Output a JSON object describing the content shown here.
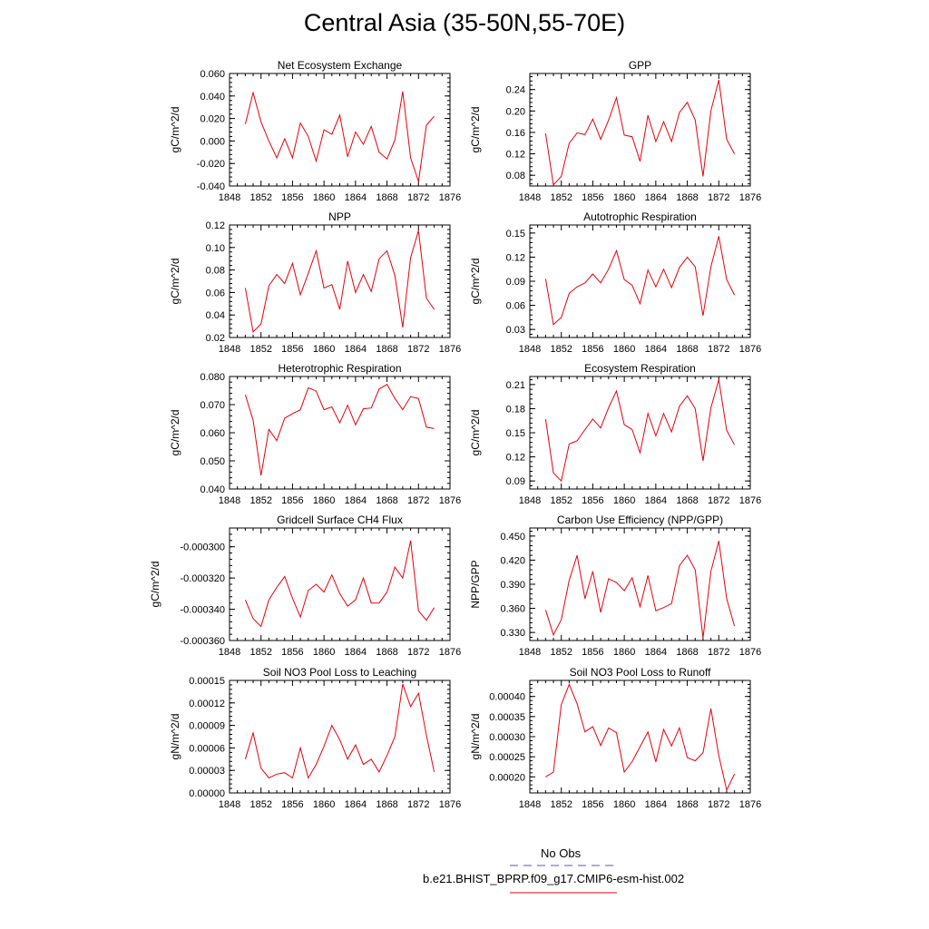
{
  "title": "Central Asia (35-50N,55-70E)",
  "colors": {
    "series": "#e8000b",
    "obs": "#5555cc",
    "frame": "#000000"
  },
  "chart_data": [
    {
      "type": "line",
      "title": "Net Ecosystem Exchange",
      "ylabel": "gC/m^2/d",
      "xlim": [
        1848,
        1876
      ],
      "xticks": [
        "1848",
        "1852",
        "1856",
        "1860",
        "1864",
        "1868",
        "1872",
        "1876"
      ],
      "ylim": [
        -0.04,
        0.06
      ],
      "yticks": [
        "-0.040",
        "-0.020",
        "0.000",
        "0.020",
        "0.040",
        "0.060"
      ],
      "x": [
        1850,
        1851,
        1852,
        1853,
        1854,
        1855,
        1856,
        1857,
        1858,
        1859,
        1860,
        1861,
        1862,
        1863,
        1864,
        1865,
        1866,
        1867,
        1868,
        1869,
        1870,
        1871,
        1872,
        1873,
        1874
      ],
      "series": [
        {
          "name": "b.e21.BHIST_BPRP.f09_g17.CMIP6-esm-hist.002",
          "values": [
            0.015,
            0.043,
            0.017,
            0.0,
            -0.015,
            0.002,
            -0.015,
            0.016,
            0.004,
            -0.018,
            0.01,
            0.006,
            0.023,
            -0.014,
            0.008,
            -0.003,
            0.013,
            -0.01,
            -0.016,
            0.001,
            0.044,
            -0.015,
            -0.036,
            0.014,
            0.022
          ]
        }
      ]
    },
    {
      "type": "line",
      "title": "GPP",
      "ylabel": "gC/m^2/d",
      "xlim": [
        1848,
        1876
      ],
      "xticks": [
        "1848",
        "1852",
        "1856",
        "1860",
        "1864",
        "1868",
        "1872",
        "1876"
      ],
      "ylim": [
        0.06,
        0.27
      ],
      "yticks": [
        "0.08",
        "0.12",
        "0.16",
        "0.20",
        "0.24"
      ],
      "x": [
        1850,
        1851,
        1852,
        1853,
        1854,
        1855,
        1856,
        1857,
        1858,
        1859,
        1860,
        1861,
        1862,
        1863,
        1864,
        1865,
        1866,
        1867,
        1868,
        1869,
        1870,
        1871,
        1872,
        1873,
        1874
      ],
      "series": [
        {
          "name": "b.e21.BHIST_BPRP.f09_g17.CMIP6-esm-hist.002",
          "values": [
            0.158,
            0.062,
            0.078,
            0.14,
            0.159,
            0.156,
            0.185,
            0.147,
            0.183,
            0.225,
            0.155,
            0.152,
            0.106,
            0.192,
            0.143,
            0.18,
            0.143,
            0.197,
            0.216,
            0.183,
            0.078,
            0.2,
            0.258,
            0.147,
            0.12
          ]
        }
      ]
    },
    {
      "type": "line",
      "title": "NPP",
      "ylabel": "gC/m^2/d",
      "xlim": [
        1848,
        1876
      ],
      "xticks": [
        "1848",
        "1852",
        "1856",
        "1860",
        "1864",
        "1868",
        "1872",
        "1876"
      ],
      "ylim": [
        0.02,
        0.12
      ],
      "yticks": [
        "0.02",
        "0.04",
        "0.06",
        "0.08",
        "0.10",
        "0.12"
      ],
      "x": [
        1850,
        1851,
        1852,
        1853,
        1854,
        1855,
        1856,
        1857,
        1858,
        1859,
        1860,
        1861,
        1862,
        1863,
        1864,
        1865,
        1866,
        1867,
        1868,
        1869,
        1870,
        1871,
        1872,
        1873,
        1874
      ],
      "series": [
        {
          "name": "b.e21.BHIST_BPRP.f09_g17.CMIP6-esm-hist.002",
          "values": [
            0.064,
            0.025,
            0.032,
            0.066,
            0.076,
            0.068,
            0.086,
            0.058,
            0.077,
            0.097,
            0.064,
            0.067,
            0.045,
            0.088,
            0.06,
            0.076,
            0.061,
            0.09,
            0.097,
            0.075,
            0.029,
            0.091,
            0.115,
            0.055,
            0.045
          ]
        }
      ]
    },
    {
      "type": "line",
      "title": "Autotrophic Respiration",
      "ylabel": "gC/m^2/d",
      "xlim": [
        1848,
        1876
      ],
      "xticks": [
        "1848",
        "1852",
        "1856",
        "1860",
        "1864",
        "1868",
        "1872",
        "1876"
      ],
      "ylim": [
        0.02,
        0.16
      ],
      "yticks": [
        "0.03",
        "0.06",
        "0.09",
        "0.12",
        "0.15"
      ],
      "x": [
        1850,
        1851,
        1852,
        1853,
        1854,
        1855,
        1856,
        1857,
        1858,
        1859,
        1860,
        1861,
        1862,
        1863,
        1864,
        1865,
        1866,
        1867,
        1868,
        1869,
        1870,
        1871,
        1872,
        1873,
        1874
      ],
      "series": [
        {
          "name": "b.e21.BHIST_BPRP.f09_g17.CMIP6-esm-hist.002",
          "values": [
            0.093,
            0.036,
            0.045,
            0.075,
            0.083,
            0.088,
            0.099,
            0.088,
            0.105,
            0.128,
            0.092,
            0.085,
            0.062,
            0.104,
            0.083,
            0.105,
            0.082,
            0.107,
            0.12,
            0.108,
            0.047,
            0.108,
            0.146,
            0.092,
            0.073
          ]
        }
      ]
    },
    {
      "type": "line",
      "title": "Heterotrophic Respiration",
      "ylabel": "gC/m^2/d",
      "xlim": [
        1848,
        1876
      ],
      "xticks": [
        "1848",
        "1852",
        "1856",
        "1860",
        "1864",
        "1868",
        "1872",
        "1876"
      ],
      "ylim": [
        0.04,
        0.08
      ],
      "yticks": [
        "0.040",
        "0.050",
        "0.060",
        "0.070",
        "0.080"
      ],
      "x": [
        1850,
        1851,
        1852,
        1853,
        1854,
        1855,
        1856,
        1857,
        1858,
        1859,
        1860,
        1861,
        1862,
        1863,
        1864,
        1865,
        1866,
        1867,
        1868,
        1869,
        1870,
        1871,
        1872,
        1873,
        1874
      ],
      "series": [
        {
          "name": "b.e21.BHIST_BPRP.f09_g17.CMIP6-esm-hist.002",
          "values": [
            0.0735,
            0.0645,
            0.0448,
            0.0612,
            0.0572,
            0.0652,
            0.0668,
            0.0682,
            0.076,
            0.0748,
            0.0682,
            0.0692,
            0.0635,
            0.0698,
            0.0628,
            0.0685,
            0.0688,
            0.0755,
            0.0772,
            0.0722,
            0.0682,
            0.0728,
            0.0722,
            0.062,
            0.0615
          ]
        }
      ]
    },
    {
      "type": "line",
      "title": "Ecosystem Respiration",
      "ylabel": "gC/m^2/d",
      "xlim": [
        1848,
        1876
      ],
      "xticks": [
        "1848",
        "1852",
        "1856",
        "1860",
        "1864",
        "1868",
        "1872",
        "1876"
      ],
      "ylim": [
        0.08,
        0.22
      ],
      "yticks": [
        "0.09",
        "0.12",
        "0.15",
        "0.18",
        "0.21"
      ],
      "x": [
        1850,
        1851,
        1852,
        1853,
        1854,
        1855,
        1856,
        1857,
        1858,
        1859,
        1860,
        1861,
        1862,
        1863,
        1864,
        1865,
        1866,
        1867,
        1868,
        1869,
        1870,
        1871,
        1872,
        1873,
        1874
      ],
      "series": [
        {
          "name": "b.e21.BHIST_BPRP.f09_g17.CMIP6-esm-hist.002",
          "values": [
            0.167,
            0.1,
            0.09,
            0.136,
            0.14,
            0.154,
            0.167,
            0.156,
            0.181,
            0.202,
            0.16,
            0.154,
            0.125,
            0.174,
            0.146,
            0.174,
            0.151,
            0.183,
            0.196,
            0.18,
            0.115,
            0.181,
            0.216,
            0.153,
            0.135
          ]
        }
      ]
    },
    {
      "type": "line",
      "title": "Gridcell Surface CH4 Flux",
      "ylabel": "gC/m^2/d",
      "xlim": [
        1848,
        1876
      ],
      "xticks": [
        "1848",
        "1852",
        "1856",
        "1860",
        "1864",
        "1868",
        "1872",
        "1876"
      ],
      "ylim": [
        -0.00036,
        -0.000288
      ],
      "yticks": [
        "-0.000360",
        "-0.000340",
        "-0.000320",
        "-0.000300"
      ],
      "x": [
        1850,
        1851,
        1852,
        1853,
        1854,
        1855,
        1856,
        1857,
        1858,
        1859,
        1860,
        1861,
        1862,
        1863,
        1864,
        1865,
        1866,
        1867,
        1868,
        1869,
        1870,
        1871,
        1872,
        1873,
        1874
      ],
      "series": [
        {
          "name": "b.e21.BHIST_BPRP.f09_g17.CMIP6-esm-hist.002",
          "values": [
            -0.000334,
            -0.000346,
            -0.000351,
            -0.000334,
            -0.000326,
            -0.000319,
            -0.000333,
            -0.000345,
            -0.000328,
            -0.000324,
            -0.000329,
            -0.000318,
            -0.00033,
            -0.000338,
            -0.000334,
            -0.00032,
            -0.000336,
            -0.000336,
            -0.000329,
            -0.000313,
            -0.00032,
            -0.000296,
            -0.000341,
            -0.000347,
            -0.000339
          ]
        }
      ]
    },
    {
      "type": "line",
      "title": "Carbon Use Efficiency (NPP/GPP)",
      "ylabel": "NPP/GPP",
      "xlim": [
        1848,
        1876
      ],
      "xticks": [
        "1848",
        "1852",
        "1856",
        "1860",
        "1864",
        "1868",
        "1872",
        "1876"
      ],
      "ylim": [
        0.32,
        0.46
      ],
      "yticks": [
        "0.330",
        "0.360",
        "0.390",
        "0.420",
        "0.450"
      ],
      "x": [
        1850,
        1851,
        1852,
        1853,
        1854,
        1855,
        1856,
        1857,
        1858,
        1859,
        1860,
        1861,
        1862,
        1863,
        1864,
        1865,
        1866,
        1867,
        1868,
        1869,
        1870,
        1871,
        1872,
        1873,
        1874
      ],
      "series": [
        {
          "name": "b.e21.BHIST_BPRP.f09_g17.CMIP6-esm-hist.002",
          "values": [
            0.358,
            0.327,
            0.346,
            0.395,
            0.426,
            0.372,
            0.406,
            0.355,
            0.397,
            0.392,
            0.382,
            0.398,
            0.362,
            0.401,
            0.357,
            0.361,
            0.366,
            0.413,
            0.426,
            0.408,
            0.323,
            0.406,
            0.444,
            0.372,
            0.338
          ]
        }
      ]
    },
    {
      "type": "line",
      "title": "Soil NO3 Pool Loss to Leaching",
      "ylabel": "gN/m^2/d",
      "xlim": [
        1848,
        1876
      ],
      "xticks": [
        "1848",
        "1852",
        "1856",
        "1860",
        "1864",
        "1868",
        "1872",
        "1876"
      ],
      "ylim": [
        0.0,
        0.00015
      ],
      "yticks": [
        "0.00000",
        "0.00003",
        "0.00006",
        "0.00009",
        "0.00012",
        "0.00015"
      ],
      "x": [
        1850,
        1851,
        1852,
        1853,
        1854,
        1855,
        1856,
        1857,
        1858,
        1859,
        1860,
        1861,
        1862,
        1863,
        1864,
        1865,
        1866,
        1867,
        1868,
        1869,
        1870,
        1871,
        1872,
        1873,
        1874
      ],
      "series": [
        {
          "name": "b.e21.BHIST_BPRP.f09_g17.CMIP6-esm-hist.002",
          "values": [
            4.5e-05,
            8e-05,
            3.3e-05,
            2e-05,
            2.5e-05,
            2.7e-05,
            2e-05,
            6e-05,
            2e-05,
            3.8e-05,
            6.2e-05,
            9e-05,
            7.1e-05,
            4.5e-05,
            6.4e-05,
            3.8e-05,
            4.5e-05,
            2.8e-05,
            5e-05,
            7.5e-05,
            0.000145,
            0.000115,
            0.000133,
            7.7e-05,
            2.8e-05
          ]
        }
      ]
    },
    {
      "type": "line",
      "title": "Soil NO3 Pool Loss to Runoff",
      "ylabel": "gN/m^2/d",
      "xlim": [
        1848,
        1876
      ],
      "xticks": [
        "1848",
        "1852",
        "1856",
        "1860",
        "1864",
        "1868",
        "1872",
        "1876"
      ],
      "ylim": [
        0.00016,
        0.00044
      ],
      "yticks": [
        "0.00020",
        "0.00025",
        "0.00030",
        "0.00035",
        "0.00040"
      ],
      "x": [
        1850,
        1851,
        1852,
        1853,
        1854,
        1855,
        1856,
        1857,
        1858,
        1859,
        1860,
        1861,
        1862,
        1863,
        1864,
        1865,
        1866,
        1867,
        1868,
        1869,
        1870,
        1871,
        1872,
        1873,
        1874
      ],
      "series": [
        {
          "name": "b.e21.BHIST_BPRP.f09_g17.CMIP6-esm-hist.002",
          "values": [
            0.0002,
            0.000212,
            0.00038,
            0.00043,
            0.000382,
            0.000312,
            0.000325,
            0.000278,
            0.000322,
            0.00031,
            0.000212,
            0.000238,
            0.000275,
            0.000312,
            0.000237,
            0.000318,
            0.000277,
            0.000322,
            0.000248,
            0.00024,
            0.00026,
            0.00037,
            0.000253,
            0.000167,
            0.000207
          ]
        }
      ]
    }
  ],
  "legend": {
    "obs_label": "No Obs",
    "model_label": "b.e21.BHIST_BPRP.f09_g17.CMIP6-esm-hist.002"
  }
}
